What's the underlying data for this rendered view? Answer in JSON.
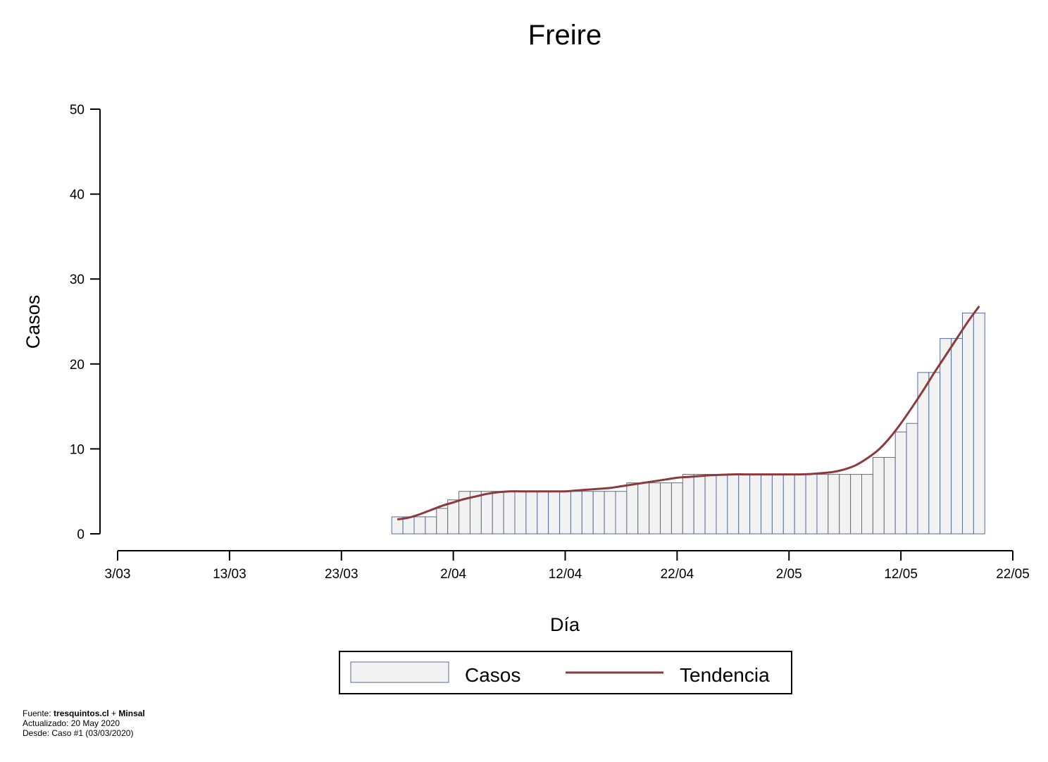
{
  "chart_data": {
    "type": "bar",
    "title": "Freire",
    "xlabel": "Día",
    "ylabel": "Casos",
    "ylim": [
      0,
      50
    ],
    "y_ticks": [
      0,
      10,
      20,
      30,
      40,
      50
    ],
    "x_ticks": [
      "3/03",
      "13/03",
      "23/03",
      "2/04",
      "12/04",
      "22/04",
      "2/05",
      "12/05",
      "22/05"
    ],
    "x_start": "2020-03-03",
    "x_end": "2020-05-22",
    "dates": [
      "28/03",
      "29/03",
      "30/03",
      "31/03",
      "1/04",
      "2/04",
      "3/04",
      "4/04",
      "5/04",
      "6/04",
      "7/04",
      "8/04",
      "9/04",
      "10/04",
      "11/04",
      "12/04",
      "13/04",
      "14/04",
      "15/04",
      "16/04",
      "17/04",
      "18/04",
      "19/04",
      "20/04",
      "21/04",
      "22/04",
      "23/04",
      "24/04",
      "25/04",
      "26/04",
      "27/04",
      "28/04",
      "29/04",
      "30/04",
      "1/05",
      "2/05",
      "3/05",
      "4/05",
      "5/05",
      "6/05",
      "7/05",
      "8/05",
      "9/05",
      "10/05",
      "11/05",
      "12/05",
      "13/05",
      "14/05",
      "15/05",
      "16/05",
      "17/05",
      "18/05",
      "19/05"
    ],
    "series": [
      {
        "name": "Casos",
        "type": "bar",
        "color": "#f2f2f2",
        "edge_color": "#5a6e94",
        "values": [
          2,
          2,
          2,
          2,
          3,
          4,
          5,
          5,
          5,
          5,
          5,
          5,
          5,
          5,
          5,
          5,
          5,
          5,
          5,
          5,
          5,
          6,
          6,
          6,
          6,
          6,
          7,
          7,
          7,
          7,
          7,
          7,
          7,
          7,
          7,
          7,
          7,
          7,
          7,
          7,
          7,
          7,
          7,
          9,
          9,
          12,
          13,
          19,
          19,
          23,
          23,
          26,
          26
        ]
      },
      {
        "name": "Tendencia",
        "type": "line",
        "color": "#8b3a3e",
        "values": [
          1.7,
          1.9,
          2.3,
          2.8,
          3.3,
          3.7,
          4.1,
          4.4,
          4.7,
          4.9,
          5.0,
          5.0,
          5.0,
          5.0,
          5.0,
          5.0,
          5.1,
          5.2,
          5.3,
          5.4,
          5.6,
          5.8,
          6.0,
          6.2,
          6.4,
          6.6,
          6.7,
          6.8,
          6.9,
          6.95,
          7.0,
          7.0,
          7.0,
          7.0,
          7.0,
          7.0,
          7.0,
          7.05,
          7.15,
          7.3,
          7.6,
          8.1,
          8.9,
          9.9,
          11.3,
          13.0,
          14.9,
          16.9,
          19.0,
          21.0,
          23.0,
          25.0,
          26.8
        ]
      }
    ],
    "legend": {
      "placement": "bottom-center",
      "items": [
        "Casos",
        "Tendencia"
      ]
    },
    "grid": false
  },
  "footer": {
    "line1_prefix": "Fuente: ",
    "line1_source1": "tresquintos.cl",
    "line1_sep": " + ",
    "line1_source2": "Minsal",
    "line2": "Actualizado: 20 May 2020",
    "line3": "Desde: Caso #1  (03/03/2020)"
  }
}
